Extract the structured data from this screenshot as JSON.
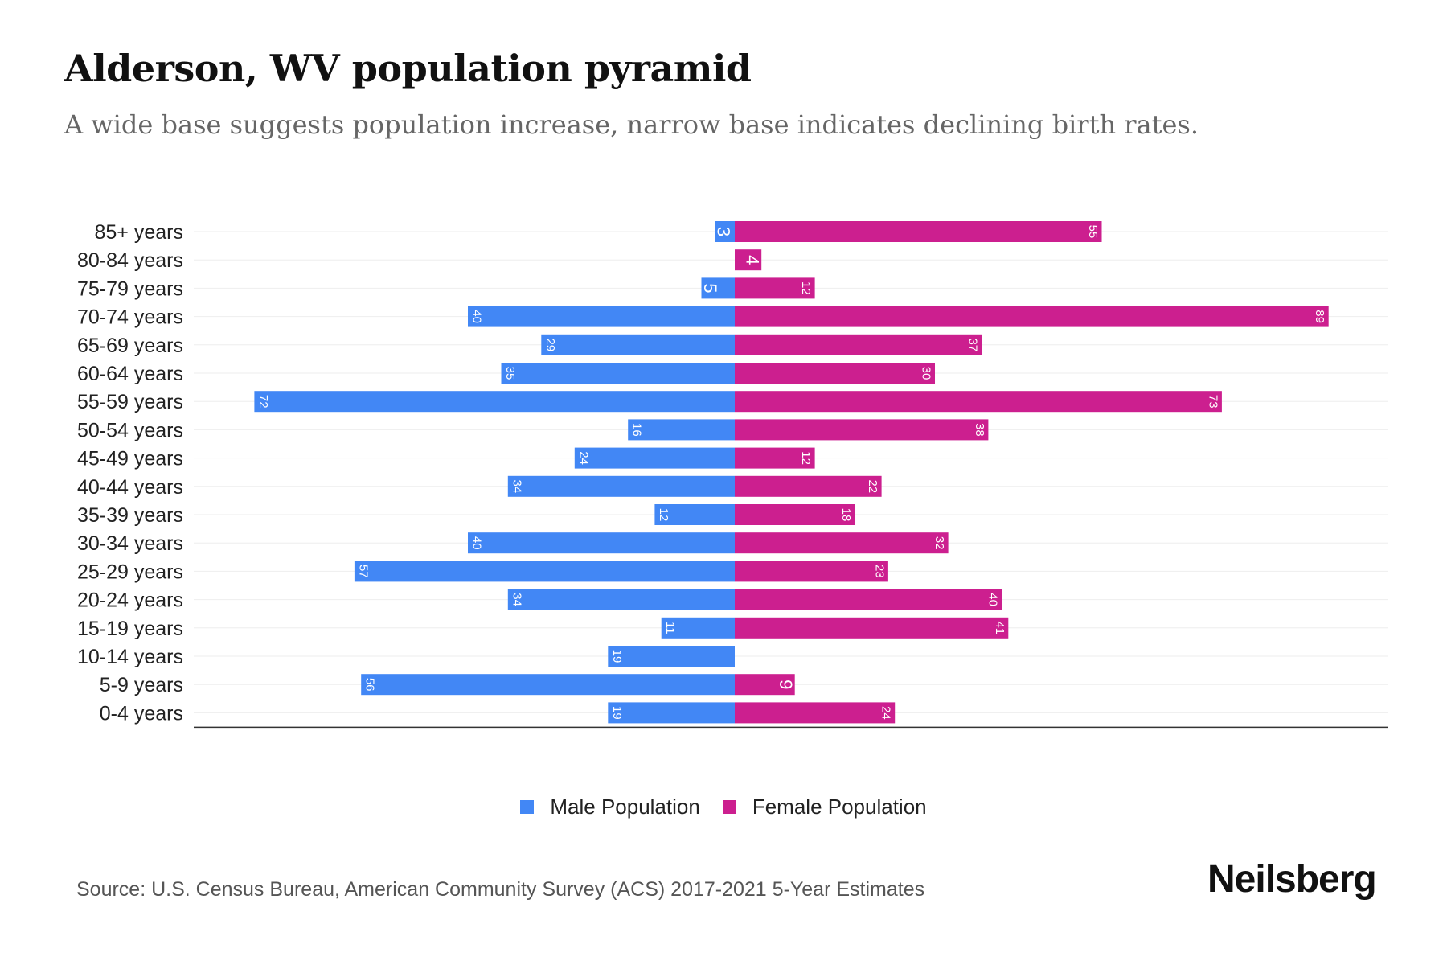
{
  "title": "Alderson, WV population pyramid",
  "subtitle": "A wide base suggests population increase, narrow base indicates declining birth rates.",
  "source": "Source: U.S. Census Bureau, American Community Survey (ACS) 2017-2021 5-Year Estimates",
  "logo": "Neilsberg",
  "colors": {
    "male": "#4287f5",
    "female": "#cc1f8f"
  },
  "chart_data": {
    "type": "bar",
    "orientation": "horizontal-pyramid",
    "categories": [
      "85+ years",
      "80-84 years",
      "75-79 years",
      "70-74 years",
      "65-69 years",
      "60-64 years",
      "55-59 years",
      "50-54 years",
      "45-49 years",
      "40-44 years",
      "35-39 years",
      "30-34 years",
      "25-29 years",
      "20-24 years",
      "15-19 years",
      "10-14 years",
      "5-9 years",
      "0-4 years"
    ],
    "series": [
      {
        "name": "Male Population",
        "values": [
          3,
          0,
          5,
          40,
          29,
          35,
          72,
          16,
          24,
          34,
          12,
          40,
          57,
          34,
          11,
          19,
          56,
          19
        ]
      },
      {
        "name": "Female Population",
        "values": [
          55,
          4,
          12,
          89,
          37,
          30,
          73,
          38,
          12,
          22,
          18,
          32,
          23,
          40,
          41,
          0,
          9,
          24
        ]
      }
    ],
    "legend_position": "bottom-center",
    "grid": true
  }
}
